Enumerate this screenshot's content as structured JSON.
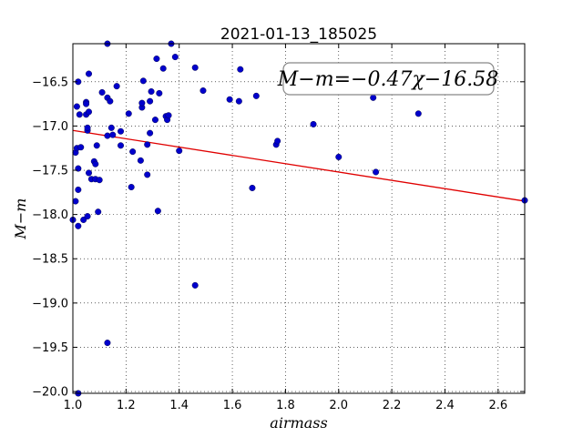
{
  "chart_data": {
    "type": "scatter",
    "title": "2021-01-13_185025",
    "xlabel": "airmass",
    "ylabel": "M−m",
    "xlim": [
      1.0,
      2.7
    ],
    "ylim": [
      -20.02,
      -16.07
    ],
    "x_ticks": [
      1.0,
      1.2,
      1.4,
      1.6,
      1.8,
      2.0,
      2.2,
      2.4,
      2.6
    ],
    "x_tick_labels": [
      "1.0",
      "1.2",
      "1.4",
      "1.6",
      "1.8",
      "2.0",
      "2.2",
      "2.4",
      "2.6"
    ],
    "y_ticks": [
      -16.5,
      -17.0,
      -17.5,
      -18.0,
      -18.5,
      -19.0,
      -19.5,
      -20.0
    ],
    "y_tick_labels": [
      "−16.5",
      "−17.0",
      "−17.5",
      "−18.0",
      "−18.5",
      "−19.0",
      "−19.5",
      "−20.0"
    ],
    "grid": true,
    "annotation": "M−m=−0.47χ−16.58",
    "annotation_position": "top-right",
    "point_color": "#0000cc",
    "fit_color": "#e00000",
    "fit": {
      "slope": -0.47,
      "intercept": -16.58
    },
    "points": [
      [
        1.0,
        -18.06
      ],
      [
        1.01,
        -17.3
      ],
      [
        1.01,
        -17.85
      ],
      [
        1.015,
        -16.78
      ],
      [
        1.015,
        -17.25
      ],
      [
        1.02,
        -16.5
      ],
      [
        1.02,
        -17.48
      ],
      [
        1.02,
        -17.72
      ],
      [
        1.02,
        -18.13
      ],
      [
        1.02,
        -20.02
      ],
      [
        1.025,
        -16.87
      ],
      [
        1.03,
        -17.24
      ],
      [
        1.04,
        -18.06
      ],
      [
        1.05,
        -16.73
      ],
      [
        1.05,
        -16.87
      ],
      [
        1.05,
        -16.75
      ],
      [
        1.055,
        -17.05
      ],
      [
        1.055,
        -17.02
      ],
      [
        1.055,
        -18.02
      ],
      [
        1.06,
        -16.84
      ],
      [
        1.06,
        -17.53
      ],
      [
        1.06,
        -16.41
      ],
      [
        1.07,
        -17.6
      ],
      [
        1.08,
        -17.4
      ],
      [
        1.085,
        -17.43
      ],
      [
        1.085,
        -17.6
      ],
      [
        1.09,
        -17.22
      ],
      [
        1.095,
        -17.97
      ],
      [
        1.1,
        -17.61
      ],
      [
        1.11,
        -16.62
      ],
      [
        1.13,
        -16.68
      ],
      [
        1.13,
        -17.11
      ],
      [
        1.13,
        -16.07
      ],
      [
        1.13,
        -19.45
      ],
      [
        1.14,
        -16.72
      ],
      [
        1.145,
        -17.02
      ],
      [
        1.15,
        -17.1
      ],
      [
        1.165,
        -16.55
      ],
      [
        1.18,
        -17.06
      ],
      [
        1.18,
        -17.22
      ],
      [
        1.21,
        -16.86
      ],
      [
        1.22,
        -17.69
      ],
      [
        1.225,
        -17.29
      ],
      [
        1.255,
        -17.39
      ],
      [
        1.26,
        -16.79
      ],
      [
        1.26,
        -16.74
      ],
      [
        1.265,
        -16.49
      ],
      [
        1.28,
        -17.55
      ],
      [
        1.28,
        -17.21
      ],
      [
        1.29,
        -16.72
      ],
      [
        1.29,
        -17.08
      ],
      [
        1.295,
        -16.61
      ],
      [
        1.31,
        -16.93
      ],
      [
        1.315,
        -16.24
      ],
      [
        1.32,
        -17.96
      ],
      [
        1.325,
        -16.63
      ],
      [
        1.34,
        -16.35
      ],
      [
        1.35,
        -16.89
      ],
      [
        1.355,
        -16.93
      ],
      [
        1.36,
        -16.88
      ],
      [
        1.37,
        -16.07
      ],
      [
        1.385,
        -16.22
      ],
      [
        1.4,
        -17.28
      ],
      [
        1.46,
        -16.34
      ],
      [
        1.46,
        -18.8
      ],
      [
        1.49,
        -16.6
      ],
      [
        1.59,
        -16.7
      ],
      [
        1.625,
        -16.72
      ],
      [
        1.63,
        -16.36
      ],
      [
        1.675,
        -17.7
      ],
      [
        1.69,
        -16.66
      ],
      [
        1.765,
        -17.21
      ],
      [
        1.77,
        -17.17
      ],
      [
        1.905,
        -16.98
      ],
      [
        2.0,
        -17.35
      ],
      [
        2.13,
        -16.68
      ],
      [
        2.14,
        -17.52
      ],
      [
        2.3,
        -16.86
      ],
      [
        2.7,
        -17.84
      ]
    ]
  }
}
